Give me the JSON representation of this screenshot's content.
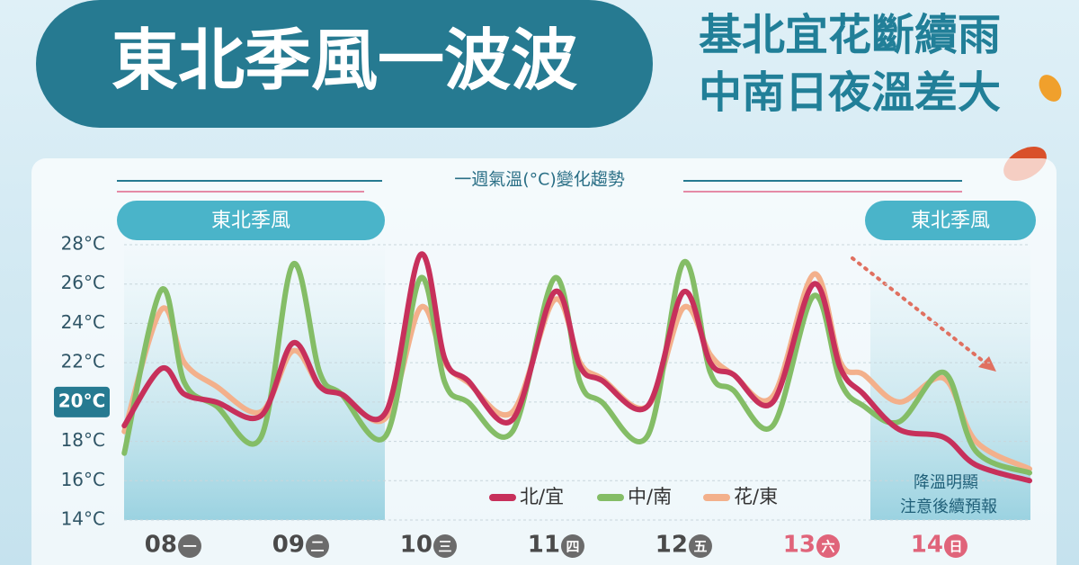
{
  "header": {
    "title": "東北季風一波波",
    "subtitle_lines": [
      "基北宜花斷續雨",
      "中南日夜溫差大"
    ]
  },
  "chart_data": {
    "type": "line",
    "title": "一週氣溫(°C)變化趨勢",
    "band_labels": [
      "東北季風",
      "東北季風"
    ],
    "annotation_lines": [
      "降溫明顯",
      "注意後續預報"
    ],
    "x": [
      0.03,
      0.32,
      0.5,
      0.75,
      1.1,
      1.35,
      1.56,
      1.73,
      2.08,
      2.35,
      2.54,
      2.72,
      3.07,
      3.4,
      3.6,
      3.77,
      4.13,
      4.41,
      4.62,
      4.8,
      5.11,
      5.43,
      5.64,
      5.82,
      6.1,
      6.45,
      6.7,
      7.12
    ],
    "series": [
      {
        "name": "北/宜",
        "color": "#c7305b",
        "values": [
          18.8,
          21.7,
          20.4,
          20.0,
          19.3,
          23.0,
          20.8,
          20.4,
          19.5,
          27.5,
          22.2,
          21.1,
          19.1,
          25.6,
          21.8,
          21.1,
          19.8,
          25.6,
          22.0,
          21.4,
          20.0,
          26.0,
          21.7,
          20.4,
          18.6,
          18.2,
          16.8,
          16.0
        ]
      },
      {
        "name": "中/南",
        "color": "#84bd66",
        "values": [
          17.4,
          25.7,
          21.0,
          19.8,
          18.2,
          27.0,
          21.5,
          20.4,
          18.3,
          26.3,
          21.0,
          20.0,
          18.5,
          26.3,
          21.0,
          20.0,
          18.3,
          27.1,
          21.5,
          20.6,
          18.8,
          25.4,
          21.0,
          19.8,
          19.0,
          21.5,
          17.5,
          16.4
        ]
      },
      {
        "name": "花/東",
        "color": "#f3b08b",
        "values": [
          18.5,
          24.7,
          22.0,
          20.8,
          19.5,
          22.6,
          20.8,
          20.4,
          19.2,
          24.8,
          22.0,
          21.0,
          19.5,
          25.2,
          22.0,
          21.2,
          19.8,
          24.8,
          22.4,
          21.4,
          20.3,
          26.5,
          22.0,
          21.4,
          20.0,
          21.2,
          18.0,
          16.6
        ]
      }
    ],
    "xlim": [
      0,
      7.12
    ],
    "xticks": [
      {
        "value": 0.5,
        "label": "08"
      },
      {
        "value": 1.5,
        "label": "09"
      },
      {
        "value": 2.5,
        "label": "10"
      },
      {
        "value": 3.5,
        "label": "11"
      },
      {
        "value": 4.5,
        "label": "12"
      },
      {
        "value": 5.5,
        "label": "13"
      },
      {
        "value": 6.5,
        "label": "14"
      }
    ],
    "weekdays": [
      "一",
      "二",
      "三",
      "四",
      "五",
      "六",
      "日"
    ],
    "weekday_colors": [
      "#6b6b6b",
      "#6b6b6b",
      "#6b6b6b",
      "#6b6b6b",
      "#6b6b6b",
      "#e0647a",
      "#e0647a"
    ],
    "ylim": [
      14,
      28
    ],
    "yticks": [
      {
        "value": 14,
        "label": "14°C"
      },
      {
        "value": 16,
        "label": "16°C"
      },
      {
        "value": 18,
        "label": "18°C"
      },
      {
        "value": 20,
        "label": "20°C"
      },
      {
        "value": 22,
        "label": "22°C"
      },
      {
        "value": 24,
        "label": "24°C"
      },
      {
        "value": 26,
        "label": "26°C"
      },
      {
        "value": 28,
        "label": "28°C"
      }
    ],
    "highlight_ytick": 20,
    "grid": true
  }
}
